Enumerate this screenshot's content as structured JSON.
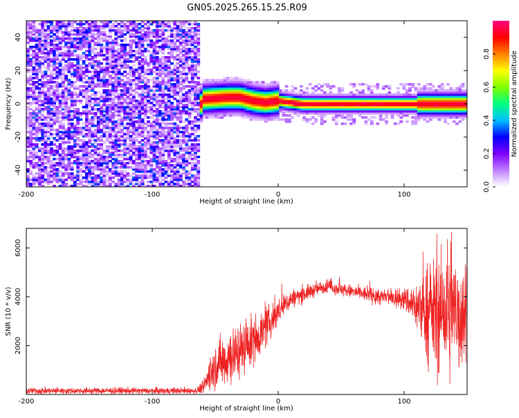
{
  "title": "GN05.2025.265.15.25.R09",
  "chart_data": [
    {
      "type": "heatmap",
      "xlabel": "Height of straight line (km)",
      "ylabel": "Frequency (Hz)",
      "xlim": [
        -200,
        150
      ],
      "ylim": [
        -50,
        50
      ],
      "x_ticks": [
        -200,
        -100,
        0,
        100
      ],
      "y_ticks": [
        -40,
        -20,
        0,
        20,
        40
      ],
      "colorbar": {
        "label": "Normalized spectral amplitude",
        "range": [
          0,
          1
        ],
        "ticks": [
          0.0,
          0.2,
          0.4,
          0.6,
          0.8
        ],
        "colors": [
          "#ffffff",
          "#c080ff",
          "#8000ff",
          "#0000ff",
          "#00c0ff",
          "#00ff80",
          "#80ff00",
          "#ffff00",
          "#ff8000",
          "#ff0000",
          "#ff0080"
        ]
      },
      "regions": [
        {
          "x_range": [
            -200,
            -62
          ],
          "description": "broadband noise, amplitude 0.1-0.35 over full frequency range"
        },
        {
          "x_range": [
            -62,
            150
          ],
          "center_frequency_hz": [
            [
              -60,
              3
            ],
            [
              -40,
              4
            ],
            [
              -30,
              4
            ],
            [
              -20,
              2
            ],
            [
              -10,
              1
            ],
            [
              0,
              2
            ],
            [
              10,
              1
            ],
            [
              20,
              0
            ],
            [
              60,
              0
            ],
            [
              100,
              0
            ],
            [
              150,
              0
            ]
          ],
          "peak_amplitude": 0.95
        }
      ],
      "grid": false
    },
    {
      "type": "line",
      "xlabel": "Height of straight line (km)",
      "ylabel": "SNR (10 * v/v)",
      "xlim": [
        -200,
        150
      ],
      "ylim": [
        0,
        6800
      ],
      "x_ticks": [
        -200,
        -100,
        0,
        100
      ],
      "y_ticks": [
        2000,
        4000,
        6000
      ],
      "series_color": "#ee2222",
      "envelope": {
        "x": [
          -200,
          -65,
          -60,
          -50,
          -40,
          -30,
          -20,
          -10,
          0,
          10,
          20,
          30,
          40,
          50,
          60,
          80,
          100,
          110,
          120,
          130,
          140,
          150
        ],
        "mean": [
          150,
          150,
          300,
          1200,
          1500,
          1800,
          2200,
          2700,
          3400,
          3900,
          4100,
          4300,
          4450,
          4300,
          4200,
          4000,
          3900,
          3600,
          3300,
          3300,
          3300,
          3400
        ],
        "spread": [
          120,
          120,
          250,
          900,
          1100,
          1000,
          900,
          700,
          500,
          350,
          300,
          250,
          250,
          250,
          250,
          300,
          400,
          900,
          1800,
          2300,
          2300,
          2300
        ]
      },
      "grid": false
    }
  ]
}
